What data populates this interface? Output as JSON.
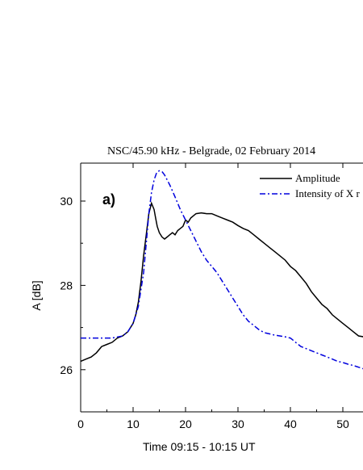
{
  "chart_data": {
    "type": "line",
    "title": "NSC/45.90 kHz - Belgrade, 02 February 2014",
    "panel_label": "a)",
    "xlabel": "Time 09:15 - 10:15 UT",
    "ylabel": "A [dB]",
    "xlim": [
      0,
      55
    ],
    "ylim": [
      25,
      30.9
    ],
    "x_ticks": [
      0,
      10,
      20,
      30,
      40,
      50
    ],
    "y_ticks": [
      26,
      28,
      30
    ],
    "grid": false,
    "legend_position": "top-right",
    "series": [
      {
        "name": "Amplitude",
        "color": "#000000",
        "style": "solid",
        "x": [
          0,
          1,
          2,
          3,
          4,
          5,
          6,
          7,
          8,
          9,
          10,
          10.5,
          11,
          11.5,
          12,
          12.5,
          13,
          13.5,
          14,
          14.3,
          14.6,
          15,
          15.5,
          16,
          16.5,
          17,
          17.5,
          18,
          18.5,
          19,
          19.5,
          20,
          20.5,
          21,
          22,
          23,
          24,
          25,
          26,
          27,
          28,
          29,
          30,
          31,
          32,
          33,
          34,
          35,
          36,
          37,
          38,
          39,
          40,
          41,
          42,
          43,
          44,
          45,
          46,
          47,
          48,
          49,
          50,
          51,
          52,
          53,
          54,
          55
        ],
        "y": [
          26.2,
          26.25,
          26.3,
          26.4,
          26.55,
          26.6,
          26.65,
          26.75,
          26.8,
          26.9,
          27.1,
          27.3,
          27.6,
          28.1,
          28.7,
          29.2,
          29.7,
          29.95,
          29.8,
          29.6,
          29.4,
          29.25,
          29.15,
          29.1,
          29.15,
          29.2,
          29.25,
          29.2,
          29.3,
          29.35,
          29.4,
          29.55,
          29.5,
          29.6,
          29.7,
          29.72,
          29.7,
          29.7,
          29.65,
          29.6,
          29.55,
          29.5,
          29.42,
          29.35,
          29.3,
          29.2,
          29.1,
          29.0,
          28.9,
          28.8,
          28.7,
          28.6,
          28.45,
          28.35,
          28.2,
          28.05,
          27.85,
          27.7,
          27.55,
          27.45,
          27.3,
          27.2,
          27.1,
          27.0,
          26.9,
          26.8,
          26.78,
          26.75
        ]
      },
      {
        "name": "Intensity of X r",
        "color": "#0000dd",
        "style": "dash-dot",
        "x": [
          0,
          2,
          4,
          6,
          8,
          9,
          10,
          11,
          12,
          12.5,
          13,
          13.5,
          14,
          14.5,
          15,
          15.5,
          16,
          16.5,
          17,
          18,
          19,
          20,
          21,
          22,
          23,
          24,
          25,
          26,
          27,
          28,
          29,
          30,
          31,
          32,
          33,
          34,
          35,
          36,
          37,
          38,
          39,
          40,
          41,
          42,
          43,
          44,
          45,
          46,
          47,
          48,
          49,
          50,
          51,
          52,
          53,
          54,
          55
        ],
        "y": [
          26.75,
          26.75,
          26.75,
          26.75,
          26.8,
          26.9,
          27.1,
          27.5,
          28.3,
          29.0,
          29.7,
          30.2,
          30.5,
          30.68,
          30.72,
          30.7,
          30.62,
          30.5,
          30.38,
          30.1,
          29.8,
          29.55,
          29.3,
          29.05,
          28.8,
          28.6,
          28.45,
          28.3,
          28.1,
          27.9,
          27.7,
          27.5,
          27.3,
          27.15,
          27.05,
          26.95,
          26.88,
          26.85,
          26.82,
          26.8,
          26.78,
          26.75,
          26.65,
          26.55,
          26.5,
          26.45,
          26.4,
          26.35,
          26.3,
          26.25,
          26.2,
          26.17,
          26.13,
          26.1,
          26.06,
          26.02,
          26.0
        ]
      }
    ]
  }
}
